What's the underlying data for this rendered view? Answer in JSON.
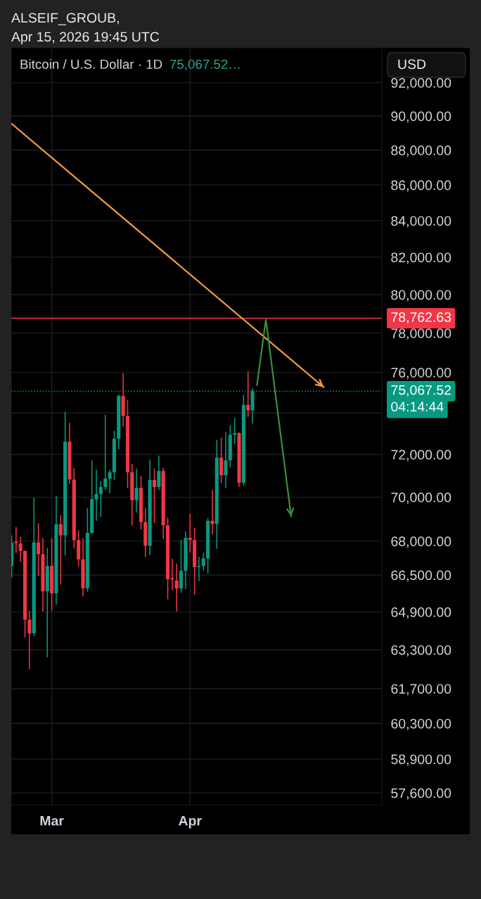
{
  "chart_data": {
    "type": "candlestick",
    "title": "Bitcoin / U.S. Dollar · 1D",
    "annotations": [
      "ALSEIF_GROUB,",
      "Apr 15, 2026 19:45 UTC",
      "75,067.52…",
      "USD",
      "04:14:44"
    ],
    "x": [
      "2026-02-20",
      "2026-02-21",
      "2026-02-22",
      "2026-02-23",
      "2026-02-24",
      "2026-02-25",
      "2026-02-26",
      "2026-02-27",
      "2026-02-28",
      "2026-03-01",
      "2026-03-02",
      "2026-03-03",
      "2026-03-04",
      "2026-03-05",
      "2026-03-06",
      "2026-03-07",
      "2026-03-08",
      "2026-03-09",
      "2026-03-10",
      "2026-03-11",
      "2026-03-12",
      "2026-03-13",
      "2026-03-14",
      "2026-03-15",
      "2026-03-16",
      "2026-03-17",
      "2026-03-18",
      "2026-03-19",
      "2026-03-20",
      "2026-03-21",
      "2026-03-22",
      "2026-03-23",
      "2026-03-24",
      "2026-03-25",
      "2026-03-26",
      "2026-03-27",
      "2026-03-28",
      "2026-03-29",
      "2026-03-30",
      "2026-03-31",
      "2026-04-01",
      "2026-04-02",
      "2026-04-03",
      "2026-04-04",
      "2026-04-05",
      "2026-04-06",
      "2026-04-07",
      "2026-04-08",
      "2026-04-09",
      "2026-04-10",
      "2026-04-11",
      "2026-04-12",
      "2026-04-13",
      "2026-04-14",
      "2026-04-15"
    ],
    "ohlc": [
      [
        66900,
        68260,
        66390,
        67940
      ],
      [
        67970,
        68630,
        67470,
        67910
      ],
      [
        67890,
        68190,
        67080,
        67560
      ],
      [
        67560,
        67580,
        63820,
        64570
      ],
      [
        64570,
        64940,
        62500,
        63990
      ],
      [
        63990,
        69970,
        63870,
        67940
      ],
      [
        67940,
        68810,
        66460,
        67420
      ],
      [
        67420,
        68150,
        64920,
        65790
      ],
      [
        65790,
        67700,
        62990,
        66900
      ],
      [
        66900,
        68130,
        64940,
        65700
      ],
      [
        65700,
        70050,
        65220,
        68760
      ],
      [
        68760,
        69180,
        66080,
        68260
      ],
      [
        68260,
        74050,
        67360,
        72610
      ],
      [
        72610,
        73510,
        70620,
        70830
      ],
      [
        70810,
        71350,
        67680,
        68050
      ],
      [
        68050,
        68490,
        66880,
        67190
      ],
      [
        67190,
        68130,
        65570,
        65920
      ],
      [
        65920,
        69510,
        65770,
        68370
      ],
      [
        68370,
        71720,
        68330,
        69910
      ],
      [
        69890,
        71270,
        68920,
        70150
      ],
      [
        70150,
        70750,
        69100,
        70470
      ],
      [
        70470,
        73910,
        70340,
        70860
      ],
      [
        70860,
        71270,
        70180,
        71160
      ],
      [
        71160,
        73130,
        70800,
        72750
      ],
      [
        72750,
        74880,
        72240,
        74830
      ],
      [
        74830,
        75960,
        73340,
        73850
      ],
      [
        73850,
        74620,
        70430,
        71160
      ],
      [
        71160,
        71550,
        68710,
        69860
      ],
      [
        69860,
        71330,
        69290,
        70430
      ],
      [
        70430,
        70990,
        68520,
        68860
      ],
      [
        68860,
        69500,
        67280,
        67790
      ],
      [
        67790,
        71750,
        67380,
        70800
      ],
      [
        70800,
        71330,
        68810,
        70470
      ],
      [
        70470,
        71940,
        70320,
        71220
      ],
      [
        71220,
        71380,
        68080,
        68710
      ],
      [
        68710,
        69070,
        65440,
        66320
      ],
      [
        66360,
        67210,
        65840,
        66310
      ],
      [
        66250,
        67000,
        64920,
        65910
      ],
      [
        65910,
        68050,
        65720,
        66680
      ],
      [
        66680,
        68440,
        65880,
        68150
      ],
      [
        68150,
        69240,
        67490,
        68050
      ],
      [
        68050,
        68600,
        65640,
        66850
      ],
      [
        66850,
        67310,
        66230,
        66900
      ],
      [
        66900,
        67490,
        66690,
        67230
      ],
      [
        67230,
        69030,
        66560,
        68920
      ],
      [
        68920,
        70320,
        68310,
        68780
      ],
      [
        68780,
        72700,
        67660,
        71850
      ],
      [
        71850,
        72800,
        70650,
        71020
      ],
      [
        71020,
        73080,
        70420,
        71720
      ],
      [
        71720,
        73400,
        71380,
        72940
      ],
      [
        72940,
        73760,
        72490,
        73020
      ],
      [
        73020,
        73060,
        70470,
        70670
      ],
      [
        70670,
        74890,
        70540,
        74390
      ],
      [
        74390,
        76060,
        73800,
        74120
      ],
      [
        74120,
        75230,
        73480,
        75067.52
      ]
    ],
    "colors": [
      "#089981",
      "#f23645",
      "#f23645",
      "#f23645",
      "#f23645",
      "#089981",
      "#f23645",
      "#f23645",
      "#089981",
      "#f23645",
      "#089981",
      "#f23645",
      "#089981",
      "#f23645",
      "#f23645",
      "#f23645",
      "#f23645",
      "#089981",
      "#089981",
      "#089981",
      "#089981",
      "#089981",
      "#089981",
      "#089981",
      "#089981",
      "#f23645",
      "#f23645",
      "#f23645",
      "#089981",
      "#f23645",
      "#f23645",
      "#089981",
      "#f23645",
      "#089981",
      "#f23645",
      "#f23645",
      "#f23645",
      "#f23645",
      "#089981",
      "#089981",
      "#f23645",
      "#f23645",
      "#089981",
      "#089981",
      "#089981",
      "#f23645",
      "#089981",
      "#f23645",
      "#089981",
      "#089981",
      "#089981",
      "#f23645",
      "#089981",
      "#f23645",
      "#089981"
    ],
    "series": [
      {
        "type": "line",
        "color": "#f39c3b",
        "x": [
          "2026-02-20",
          "2026-05-01"
        ],
        "values": [
          89540,
          75260
        ]
      },
      {
        "type": "line",
        "color": "#3c8c40",
        "x": [
          "2026-04-16",
          "2026-04-18",
          "2026-04-23T16:00"
        ],
        "values": [
          75360,
          78700,
          69110
        ]
      }
    ],
    "xlim": [
      "2026-02-19T22:00",
      "2026-05-14"
    ],
    "ylim": [
      57150,
      94140
    ],
    "log": true,
    "xticks": [
      {
        "value": "2026-03-01",
        "label": "Mar"
      },
      {
        "value": "2026-04-01",
        "label": "Apr"
      }
    ],
    "yticks": [
      {
        "value": 92000,
        "label": "92,000.00"
      },
      {
        "value": 90000,
        "label": "90,000.00"
      },
      {
        "value": 88000,
        "label": "88,000.00"
      },
      {
        "value": 86000,
        "label": "86,000.00"
      },
      {
        "value": 84000,
        "label": "84,000.00"
      },
      {
        "value": 82000,
        "label": "82,000.00"
      },
      {
        "value": 80000,
        "label": "80,000.00"
      },
      {
        "value": 78000,
        "label": "78,000.00"
      },
      {
        "value": 76000,
        "label": "76,000.00"
      },
      {
        "value": 74000,
        "label": null
      },
      {
        "value": 72000,
        "label": "72,000.00"
      },
      {
        "value": 70000,
        "label": "70,000.00"
      },
      {
        "value": 68000,
        "label": "68,000.00"
      },
      {
        "value": 66500,
        "label": "66,500.00"
      },
      {
        "value": 64900,
        "label": "64,900.00"
      },
      {
        "value": 63300,
        "label": "63,300.00"
      },
      {
        "value": 61700,
        "label": "61,700.00"
      },
      {
        "value": 60300,
        "label": "60,300.00"
      },
      {
        "value": 58900,
        "label": "58,900.00"
      },
      {
        "value": 57600,
        "label": "57,600.00"
      }
    ],
    "grid": true,
    "ref_lines": [
      {
        "axis": "y",
        "value": 78762.63,
        "label": "78,762.63",
        "color": "#f23645",
        "line_style": "solid"
      },
      {
        "axis": "y",
        "value": 75067.52,
        "label": "75,067.52",
        "color": "#089981",
        "line_style": "dotted"
      }
    ]
  }
}
